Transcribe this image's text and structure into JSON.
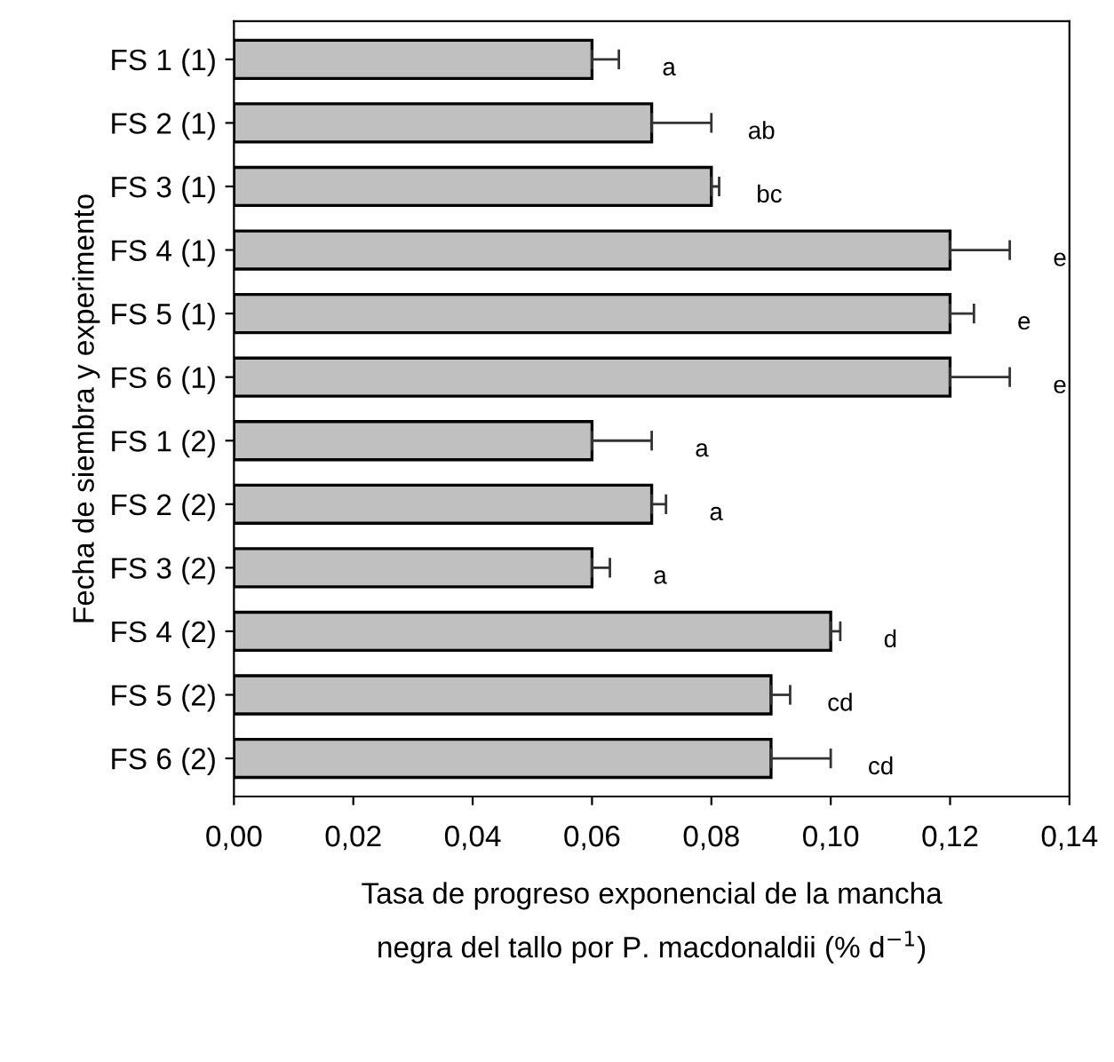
{
  "chart_data": {
    "type": "bar",
    "orientation": "horizontal",
    "ylabel": "Fecha de siembra y experimento",
    "xlabel": "Tasa de progreso exponencial de la mancha\nnegra del tallo por P. macdonaldii (% d$^{−1}$)",
    "categories": [
      "FS 1 (1)",
      "FS 2 (1)",
      "FS 3 (1)",
      "FS 4 (1)",
      "FS 5 (1)",
      "FS 6 (1)",
      "FS 1 (2)",
      "FS 2 (2)",
      "FS 3 (2)",
      "FS 4 (2)",
      "FS 5 (2)",
      "FS 6 (2)"
    ],
    "values": [
      0.06,
      0.07,
      0.08,
      0.12,
      0.12,
      0.12,
      0.06,
      0.07,
      0.06,
      0.1,
      0.09,
      0.09
    ],
    "errors": [
      [
        0.06,
        0.0645
      ],
      [
        0.07,
        0.08
      ],
      [
        0.08,
        0.0813
      ],
      [
        0.12,
        0.13
      ],
      [
        0.12,
        0.124
      ],
      [
        0.12,
        0.13
      ],
      [
        0.06,
        0.07
      ],
      [
        0.07,
        0.0724
      ],
      [
        0.06,
        0.063
      ],
      [
        0.1,
        0.1016
      ],
      [
        0.09,
        0.0932
      ],
      [
        0.09,
        0.1
      ]
    ],
    "color": "#c0c0c0",
    "xlim": [
      0,
      0.14
    ],
    "xticks": [
      {
        "value": 0,
        "label": "0,00"
      },
      {
        "value": 0.02,
        "label": "0,02"
      },
      {
        "value": 0.04,
        "label": "0,04"
      },
      {
        "value": 0.06,
        "label": "0,06"
      },
      {
        "value": 0.08,
        "label": "0,08"
      },
      {
        "value": 0.1,
        "label": "0,10"
      },
      {
        "value": 0.12,
        "label": "0,12"
      },
      {
        "value": 0.14,
        "label": "0,14"
      }
    ],
    "grid": false,
    "legend": false,
    "annotations": [
      "a",
      "ab",
      "bc",
      "e",
      "e",
      "e",
      "a",
      "a",
      "a",
      "d",
      "cd",
      "cd"
    ]
  }
}
